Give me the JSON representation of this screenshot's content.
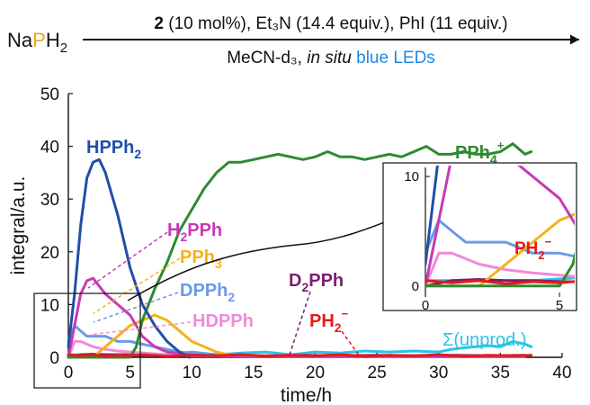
{
  "reaction": {
    "reagent_prefix": "Na",
    "reagent_p": "P",
    "reagent_h": "H",
    "reagent_sub": "2",
    "conditions_catalyst": "2",
    "conditions_top": " (10 mol%), Et₃N (14.4 equiv.), PhI (11 equiv.)",
    "conditions_bottom_plain": "MeCN-d₃, ",
    "conditions_bottom_italic": "in situ",
    "conditions_bottom_colored": " blue LEDs",
    "colors": {
      "P": "#f2a21b",
      "blue_leds": "#1e88e5"
    }
  },
  "chart_data": [
    {
      "type": "line",
      "title": "",
      "xlabel": "time/h",
      "ylabel": "integral/a.u.",
      "xlim": [
        0,
        40
      ],
      "ylim": [
        0,
        50
      ],
      "xticks": [
        0,
        5,
        10,
        15,
        20,
        25,
        30,
        35,
        40
      ],
      "yticks": [
        0,
        10,
        20,
        30,
        40,
        50
      ],
      "grid": false,
      "series": [
        {
          "name": "PPh4+",
          "label_main": "PPh",
          "label_sub": "4",
          "label_sup": "+",
          "color": "#2e8b2e",
          "x": [
            0,
            1,
            2,
            3,
            4,
            5,
            5.5,
            6,
            7,
            8,
            9,
            10,
            11,
            12,
            13,
            14,
            15,
            16,
            17,
            18,
            19,
            20,
            21,
            22,
            23,
            24,
            25,
            26,
            27,
            28,
            29,
            30,
            31,
            32,
            33,
            34,
            35,
            36,
            37,
            37.5
          ],
          "y": [
            0,
            0,
            0,
            0,
            0,
            0,
            2,
            7,
            13,
            18,
            24,
            28,
            32,
            35,
            37,
            37,
            37.5,
            38,
            38.5,
            38,
            37.5,
            38,
            39,
            38,
            38,
            37.5,
            38,
            38.5,
            38,
            39,
            40,
            38.5,
            38.5,
            39,
            38.5,
            38.5,
            39,
            40.5,
            38.5,
            39
          ]
        },
        {
          "name": "HPPh2",
          "label_main": "HPPh",
          "label_sub": "2",
          "color": "#1f4fa8",
          "x": [
            0,
            0.5,
            1,
            1.5,
            2,
            2.5,
            3,
            3.5,
            4,
            4.5,
            5,
            6,
            7,
            8,
            9,
            9.8
          ],
          "y": [
            2,
            12,
            25,
            34,
            37,
            37.5,
            35,
            31,
            27,
            22,
            17,
            10,
            6,
            3,
            1,
            0
          ]
        },
        {
          "name": "H2PPh",
          "label_pre": "H",
          "label_pre_sub": "2",
          "label_main": "PPh",
          "color": "#c63ab5",
          "x": [
            0,
            0.5,
            1,
            1.5,
            2,
            2.5,
            3,
            3.5,
            4,
            4.5,
            5,
            5.5,
            6,
            7,
            8,
            10,
            12,
            15,
            20,
            25,
            30,
            35,
            37
          ],
          "y": [
            0,
            6,
            12,
            14.5,
            15,
            13.5,
            12,
            11,
            10,
            9,
            8,
            6,
            4,
            2,
            1,
            0.5,
            0.3,
            0.3,
            0.2,
            0.2,
            0.2,
            0.2,
            0.2
          ]
        },
        {
          "name": "PPh3",
          "label_main": "PPh",
          "label_sub": "3",
          "color": "#f5b21b",
          "x": [
            0,
            1,
            2,
            3,
            4,
            5,
            6,
            7,
            8,
            9,
            10,
            11,
            12,
            13,
            15,
            20,
            25,
            30,
            35,
            37
          ],
          "y": [
            0,
            0,
            0,
            2,
            4,
            6,
            7,
            8,
            7,
            5,
            3,
            2,
            1,
            0.5,
            0.3,
            0.2,
            0.2,
            0.2,
            0.2,
            0.2
          ]
        },
        {
          "name": "DPPh2",
          "label_main": "DPPh",
          "label_sub": "2",
          "color": "#6b9ae8",
          "x": [
            0,
            0.5,
            1,
            1.5,
            2,
            3,
            4,
            5,
            6,
            7,
            8,
            9,
            10,
            12,
            15,
            20,
            25,
            30,
            35,
            37
          ],
          "y": [
            3,
            6,
            5,
            4,
            4,
            4,
            3,
            3,
            2.5,
            2,
            1.5,
            1,
            0.8,
            0.5,
            0.3,
            0.3,
            0.2,
            0.2,
            0.2,
            0.2
          ]
        },
        {
          "name": "HDPPh",
          "label_main": "HDPPh",
          "color": "#f28ad6",
          "x": [
            0,
            0.5,
            1,
            1.5,
            2,
            3,
            4,
            5,
            6,
            8,
            10,
            15,
            20,
            25,
            30,
            35,
            37
          ],
          "y": [
            0,
            3,
            3,
            2.5,
            2,
            1.5,
            1.2,
            1,
            0.8,
            0.5,
            0.3,
            0.2,
            0.2,
            0.2,
            0.2,
            0.2,
            0.2
          ]
        },
        {
          "name": "D2PPh",
          "label_pre": "D",
          "label_pre_sub": "2",
          "label_main": "PPh",
          "color": "#7a1f6e",
          "x": [
            0,
            1,
            2,
            3,
            4,
            5,
            7,
            10,
            13,
            16,
            19,
            22,
            25,
            28,
            31,
            34,
            37
          ],
          "y": [
            0,
            0.5,
            0.6,
            0.5,
            0.5,
            0.4,
            0.4,
            0.3,
            0.4,
            0.3,
            0.4,
            0.3,
            0.4,
            0.3,
            0.4,
            0.3,
            0.4
          ]
        },
        {
          "name": "PH2-",
          "label_main": "PH",
          "label_sub": "2",
          "label_sup": "−",
          "color": "#e41a1c",
          "x": [
            0,
            1,
            2,
            3,
            4,
            5,
            6,
            8,
            10,
            12,
            14,
            16,
            18,
            20,
            22,
            24,
            26,
            28,
            30,
            32,
            34,
            36,
            37.5
          ],
          "y": [
            0.5,
            0.3,
            0.5,
            0.2,
            0.4,
            0.3,
            0.5,
            0.2,
            0.4,
            0.3,
            0.5,
            0.2,
            0.4,
            0.3,
            0.5,
            0.2,
            0.4,
            0.3,
            0.5,
            0.2,
            0.4,
            0.3,
            0.4
          ]
        },
        {
          "name": "Σ(unprod.)",
          "label_main": "Σ(unprod.)",
          "color": "#29c4e8",
          "x": [
            0,
            2,
            4,
            6,
            8,
            10,
            12,
            14,
            16,
            18,
            20,
            22,
            24,
            26,
            28,
            30,
            31,
            32,
            33,
            34,
            35,
            36,
            37,
            37.5
          ],
          "y": [
            0.5,
            0.5,
            0.5,
            0.8,
            0.5,
            1,
            0.5,
            0.8,
            1,
            0.5,
            1,
            0.8,
            1.2,
            1,
            1.2,
            1,
            1.5,
            1.8,
            2,
            2.2,
            2,
            3,
            2.5,
            2
          ]
        }
      ],
      "annotation": "arrow from zoom box (0–5 h) to inset"
    },
    {
      "type": "line",
      "title": "inset",
      "xlim": [
        0,
        5.5
      ],
      "ylim": [
        -1,
        10.5
      ],
      "xticks": [
        0,
        5
      ],
      "yticks": [
        0,
        10
      ],
      "grid": false,
      "inset_label": {
        "label_main": "PH",
        "label_sub": "2",
        "label_sup": "−"
      }
    }
  ]
}
